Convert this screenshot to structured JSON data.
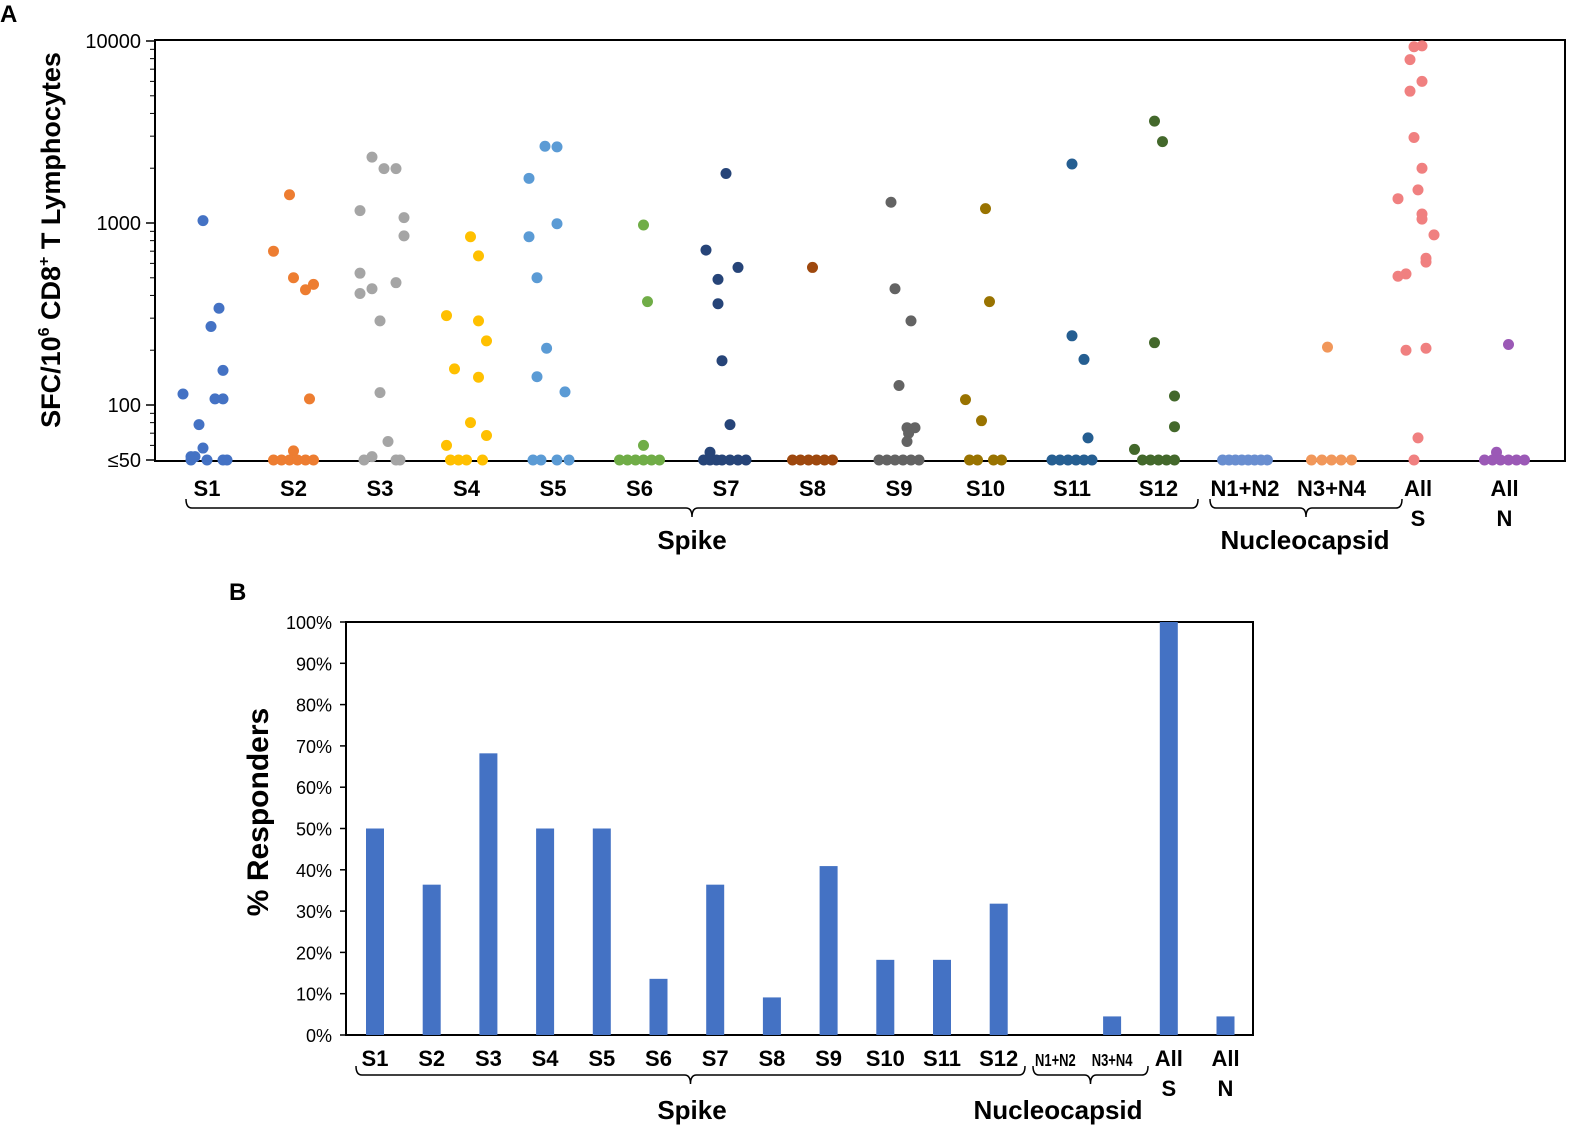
{
  "panels": {
    "a_label": "A",
    "b_label": "B"
  },
  "groups": {
    "spike": "Spike",
    "nucleocapsid": "Nucleocapsid"
  },
  "chart_data": [
    {
      "type": "scatter",
      "panel": "A",
      "title": "",
      "xlabel": "",
      "ylabel_parts": [
        "SFC/10",
        "6",
        " CD8",
        "+",
        " T Lymphocytes"
      ],
      "yscale": "log",
      "ylim": [
        50,
        10000
      ],
      "yticks": [
        {
          "value": 10000,
          "label": "10000"
        },
        {
          "value": 1000,
          "label": "1000"
        },
        {
          "value": 100,
          "label": "100"
        },
        {
          "value": 50,
          "label": "≤50"
        }
      ],
      "categories": [
        {
          "label": [
            "S1"
          ],
          "color": "#4472C4"
        },
        {
          "label": [
            "S2"
          ],
          "color": "#ED7D31"
        },
        {
          "label": [
            "S3"
          ],
          "color": "#A5A5A5"
        },
        {
          "label": [
            "S4"
          ],
          "color": "#FFC000"
        },
        {
          "label": [
            "S5"
          ],
          "color": "#5B9BD5"
        },
        {
          "label": [
            "S6"
          ],
          "color": "#70AD47"
        },
        {
          "label": [
            "S7"
          ],
          "color": "#264478"
        },
        {
          "label": [
            "S8"
          ],
          "color": "#9E480E"
        },
        {
          "label": [
            "S9"
          ],
          "color": "#636363"
        },
        {
          "label": [
            "S10"
          ],
          "color": "#997300"
        },
        {
          "label": [
            "S11"
          ],
          "color": "#255E91"
        },
        {
          "label": [
            "S12"
          ],
          "color": "#43682B"
        },
        {
          "label": [
            "N1+N2"
          ],
          "color": "#698ED0"
        },
        {
          "label": [
            "N3+N4"
          ],
          "color": "#F1975A"
        },
        {
          "label": [
            "All",
            "S"
          ],
          "color": "#F08080"
        },
        {
          "label": [
            "All",
            "N"
          ],
          "color": "#9B59B6"
        }
      ],
      "points": [
        [
          [
            -0.3,
            115
          ],
          [
            -0.15,
            52
          ],
          [
            -0.05,
            1030
          ],
          [
            0.05,
            270
          ],
          [
            0.15,
            340
          ],
          [
            0.1,
            108
          ],
          [
            -0.1,
            78
          ],
          [
            0.2,
            155
          ],
          [
            0.2,
            108
          ],
          [
            -0.05,
            58
          ],
          [
            -0.2,
            52
          ],
          [
            0.25,
            50
          ],
          [
            0.0,
            50
          ],
          [
            -0.2,
            50
          ],
          [
            0.2,
            50
          ]
        ],
        [
          [
            -0.25,
            700
          ],
          [
            -0.05,
            1430
          ],
          [
            0.0,
            500
          ],
          [
            0.15,
            430
          ],
          [
            0.25,
            460
          ],
          [
            0.2,
            108
          ],
          [
            0.0,
            56
          ],
          [
            -0.25,
            50
          ],
          [
            -0.15,
            50
          ],
          [
            -0.05,
            50
          ],
          [
            0.05,
            50
          ],
          [
            0.15,
            50
          ],
          [
            0.25,
            50
          ]
        ],
        [
          [
            -0.25,
            1170
          ],
          [
            -0.1,
            2300
          ],
          [
            0.05,
            1990
          ],
          [
            0.2,
            1990
          ],
          [
            0.3,
            1070
          ],
          [
            0.3,
            850
          ],
          [
            -0.25,
            530
          ],
          [
            -0.1,
            435
          ],
          [
            -0.25,
            410
          ],
          [
            0.2,
            470
          ],
          [
            0.0,
            290
          ],
          [
            0.0,
            117
          ],
          [
            0.1,
            63
          ],
          [
            -0.1,
            52
          ],
          [
            -0.2,
            50
          ],
          [
            0.2,
            50
          ],
          [
            0.25,
            50
          ]
        ],
        [
          [
            -0.25,
            310
          ],
          [
            -0.15,
            158
          ],
          [
            0.05,
            840
          ],
          [
            0.15,
            660
          ],
          [
            0.15,
            290
          ],
          [
            0.25,
            225
          ],
          [
            0.15,
            142
          ],
          [
            0.05,
            80
          ],
          [
            0.25,
            68
          ],
          [
            -0.25,
            60
          ],
          [
            -0.2,
            50
          ],
          [
            -0.1,
            50
          ],
          [
            0.0,
            50
          ],
          [
            0.2,
            50
          ]
        ],
        [
          [
            -0.3,
            1760
          ],
          [
            -0.3,
            840
          ],
          [
            -0.2,
            500
          ],
          [
            -0.2,
            143
          ],
          [
            -0.1,
            2640
          ],
          [
            0.05,
            2620
          ],
          [
            0.05,
            990
          ],
          [
            -0.08,
            205
          ],
          [
            0.15,
            118
          ],
          [
            -0.25,
            50
          ],
          [
            -0.15,
            50
          ],
          [
            0.05,
            50
          ],
          [
            0.2,
            50
          ]
        ],
        [
          [
            0.05,
            975
          ],
          [
            0.1,
            370
          ],
          [
            0.05,
            60
          ],
          [
            -0.25,
            50
          ],
          [
            -0.15,
            50
          ],
          [
            -0.05,
            50
          ],
          [
            0.05,
            50
          ],
          [
            0.15,
            50
          ],
          [
            0.25,
            50
          ]
        ],
        [
          [
            0.0,
            1870
          ],
          [
            -0.25,
            710
          ],
          [
            -0.1,
            490
          ],
          [
            0.15,
            570
          ],
          [
            -0.1,
            360
          ],
          [
            -0.05,
            175
          ],
          [
            0.05,
            78
          ],
          [
            -0.2,
            55
          ],
          [
            -0.28,
            50
          ],
          [
            -0.2,
            50
          ],
          [
            -0.12,
            50
          ],
          [
            -0.05,
            50
          ],
          [
            0.05,
            50
          ],
          [
            0.15,
            50
          ],
          [
            0.25,
            50
          ]
        ],
        [
          [
            0.0,
            570
          ],
          [
            -0.25,
            50
          ],
          [
            -0.15,
            50
          ],
          [
            -0.05,
            50
          ],
          [
            0.05,
            50
          ],
          [
            0.15,
            50
          ],
          [
            0.25,
            50
          ]
        ],
        [
          [
            -0.1,
            1300
          ],
          [
            -0.05,
            435
          ],
          [
            0.0,
            128
          ],
          [
            0.15,
            290
          ],
          [
            0.1,
            75
          ],
          [
            0.2,
            75
          ],
          [
            0.12,
            70
          ],
          [
            0.1,
            63
          ],
          [
            -0.25,
            50
          ],
          [
            -0.15,
            50
          ],
          [
            -0.05,
            50
          ],
          [
            0.05,
            50
          ],
          [
            0.15,
            50
          ],
          [
            0.25,
            50
          ]
        ],
        [
          [
            -0.25,
            107
          ],
          [
            -0.05,
            82
          ],
          [
            0.0,
            1200
          ],
          [
            0.05,
            370
          ],
          [
            -0.2,
            50
          ],
          [
            -0.1,
            50
          ],
          [
            0.1,
            50
          ],
          [
            0.2,
            50
          ]
        ],
        [
          [
            0.0,
            2110
          ],
          [
            0.0,
            240
          ],
          [
            0.15,
            178
          ],
          [
            0.2,
            66
          ],
          [
            -0.25,
            50
          ],
          [
            -0.15,
            50
          ],
          [
            -0.05,
            50
          ],
          [
            0.05,
            50
          ],
          [
            0.15,
            50
          ],
          [
            0.25,
            50
          ]
        ],
        [
          [
            -0.05,
            3630
          ],
          [
            0.05,
            2800
          ],
          [
            -0.05,
            220
          ],
          [
            0.2,
            112
          ],
          [
            0.2,
            76
          ],
          [
            -0.3,
            57
          ],
          [
            -0.2,
            50
          ],
          [
            -0.1,
            50
          ],
          [
            0.0,
            50
          ],
          [
            0.1,
            50
          ],
          [
            0.2,
            50
          ]
        ],
        [
          [
            -0.28,
            50
          ],
          [
            -0.2,
            50
          ],
          [
            -0.12,
            50
          ],
          [
            -0.04,
            50
          ],
          [
            0.04,
            50
          ],
          [
            0.12,
            50
          ],
          [
            0.2,
            50
          ],
          [
            0.28,
            50
          ]
        ],
        [
          [
            -0.05,
            208
          ],
          [
            -0.25,
            50
          ],
          [
            -0.12,
            50
          ],
          [
            0.0,
            50
          ],
          [
            0.12,
            50
          ],
          [
            0.25,
            50
          ]
        ],
        [
          [
            -0.05,
            9300
          ],
          [
            0.05,
            9400
          ],
          [
            -0.1,
            7900
          ],
          [
            0.05,
            6000
          ],
          [
            -0.1,
            5300
          ],
          [
            -0.05,
            2950
          ],
          [
            0.05,
            2000
          ],
          [
            0.0,
            1520
          ],
          [
            -0.25,
            1360
          ],
          [
            0.05,
            1120
          ],
          [
            0.05,
            1050
          ],
          [
            0.2,
            860
          ],
          [
            0.1,
            640
          ],
          [
            0.1,
            610
          ],
          [
            -0.25,
            510
          ],
          [
            -0.15,
            525
          ],
          [
            -0.15,
            200
          ],
          [
            0.1,
            205
          ],
          [
            0.0,
            66
          ],
          [
            -0.05,
            50
          ]
        ],
        [
          [
            0.05,
            215
          ],
          [
            -0.1,
            55
          ],
          [
            -0.25,
            50
          ],
          [
            -0.15,
            50
          ],
          [
            -0.05,
            50
          ],
          [
            0.05,
            50
          ],
          [
            0.15,
            50
          ],
          [
            0.25,
            50
          ]
        ]
      ]
    },
    {
      "type": "bar",
      "panel": "B",
      "title": "",
      "xlabel": "",
      "ylabel": "% Responders",
      "ylim": [
        0,
        100
      ],
      "yticks": [
        "0%",
        "10%",
        "20%",
        "30%",
        "40%",
        "50%",
        "60%",
        "70%",
        "80%",
        "90%",
        "100%"
      ],
      "bar_color": "#4472C4",
      "categories": [
        {
          "label": [
            "S1"
          ],
          "style": "normal"
        },
        {
          "label": [
            "S2"
          ],
          "style": "normal"
        },
        {
          "label": [
            "S3"
          ],
          "style": "normal"
        },
        {
          "label": [
            "S4"
          ],
          "style": "normal"
        },
        {
          "label": [
            "S5"
          ],
          "style": "normal"
        },
        {
          "label": [
            "S6"
          ],
          "style": "normal"
        },
        {
          "label": [
            "S7"
          ],
          "style": "normal"
        },
        {
          "label": [
            "S8"
          ],
          "style": "normal"
        },
        {
          "label": [
            "S9"
          ],
          "style": "normal"
        },
        {
          "label": [
            "S10"
          ],
          "style": "normal"
        },
        {
          "label": [
            "S11"
          ],
          "style": "normal"
        },
        {
          "label": [
            "S12"
          ],
          "style": "normal"
        },
        {
          "label": [
            "N1+N2"
          ],
          "style": "narrow"
        },
        {
          "label": [
            "N3+N4"
          ],
          "style": "narrow"
        },
        {
          "label": [
            "All",
            "S"
          ],
          "style": "normal"
        },
        {
          "label": [
            "All",
            "N"
          ],
          "style": "normal"
        }
      ],
      "values": [
        50,
        36.4,
        68.2,
        50,
        50,
        13.6,
        36.4,
        9.1,
        40.9,
        18.2,
        18.2,
        31.8,
        0,
        4.5,
        100,
        4.5
      ]
    }
  ]
}
